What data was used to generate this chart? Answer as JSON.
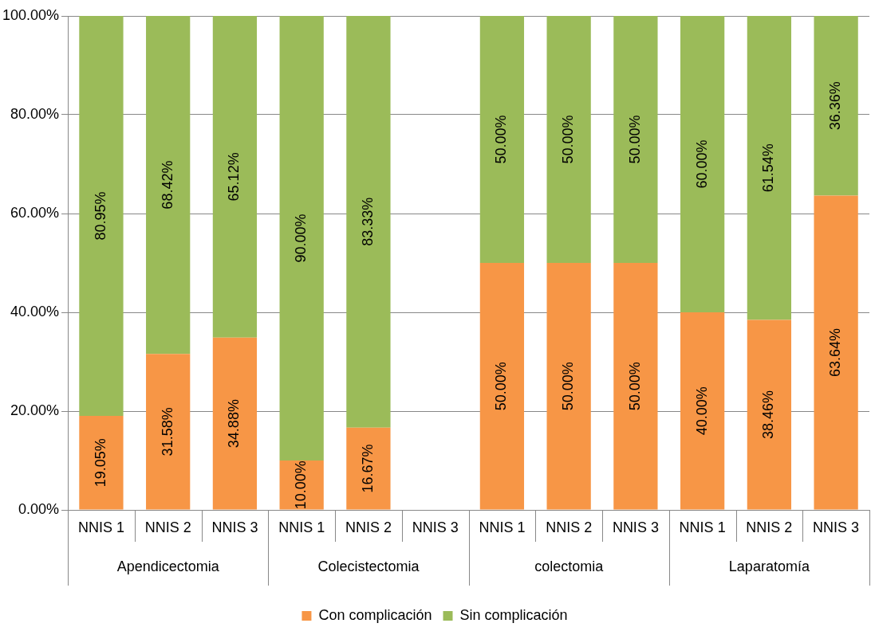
{
  "chart_data": {
    "type": "bar",
    "stacked": true,
    "categories": [
      "NNIS 1",
      "NNIS 2",
      "NNIS 3",
      "NNIS 1",
      "NNIS 2",
      "NNIS 3",
      "NNIS 1",
      "NNIS 2",
      "NNIS 3",
      "NNIS 1",
      "NNIS 2",
      "NNIS 3"
    ],
    "series": [
      {
        "name": "Con complicación",
        "color": "#f79646",
        "values": [
          19.05,
          31.58,
          34.88,
          10.0,
          16.67,
          null,
          50.0,
          50.0,
          50.0,
          40.0,
          38.46,
          63.64
        ],
        "value_labels": [
          "19.05%",
          "31.58%",
          "34.88%",
          "10.00%",
          "16.67%",
          null,
          "50.00%",
          "50.00%",
          "50.00%",
          "40.00%",
          "38.46%",
          "63.64%"
        ]
      },
      {
        "name": "Sin complicación",
        "color": "#9bbb59",
        "values": [
          80.95,
          68.42,
          65.12,
          90.0,
          83.33,
          null,
          50.0,
          50.0,
          50.0,
          60.0,
          61.54,
          36.36
        ],
        "value_labels": [
          "80.95%",
          "68.42%",
          "65.12%",
          "90.00%",
          "83.33%",
          null,
          "50.00%",
          "50.00%",
          "50.00%",
          "60.00%",
          "61.54%",
          "36.36%"
        ]
      }
    ],
    "ylim": [
      0,
      100
    ],
    "yticks": [
      {
        "value": 0,
        "label": "0.00%"
      },
      {
        "value": 20,
        "label": "20.00%"
      },
      {
        "value": 40,
        "label": "40.00%"
      },
      {
        "value": 60,
        "label": "60.00%"
      },
      {
        "value": 80,
        "label": "80.00%"
      },
      {
        "value": 100,
        "label": "100.00%"
      }
    ],
    "annotations": [
      "Apendicectomia",
      "Colecistectomia",
      "colectomia",
      "Laparatomía"
    ],
    "grid": "y",
    "legend": "bottom"
  }
}
